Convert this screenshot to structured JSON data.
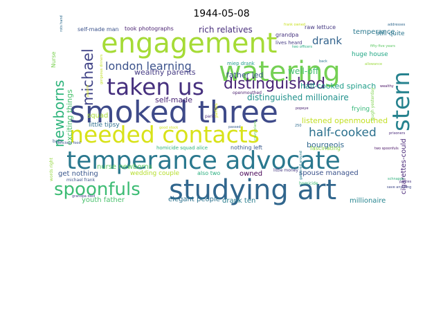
{
  "chart_data": {
    "type": "wordcloud",
    "title": "1944-05-08",
    "words": [
      {
        "text": "smoked three",
        "color": "#3e4a89"
      },
      {
        "text": "temperance advocate",
        "color": "#2a788e"
      },
      {
        "text": "studying art",
        "color": "#31668d"
      },
      {
        "text": "engagement",
        "color": "#a5db36"
      },
      {
        "text": "watering",
        "color": "#75d054"
      },
      {
        "text": "needed contacts",
        "color": "#d8e219"
      },
      {
        "text": "taken us",
        "color": "#46307e"
      },
      {
        "text": "stern",
        "color": "#26828e"
      },
      {
        "text": "spoonfuls",
        "color": "#3dbc74"
      },
      {
        "text": "distinguished",
        "color": "#482576"
      },
      {
        "text": "michael",
        "color": "#414487"
      },
      {
        "text": "newborns",
        "color": "#2fb47c"
      },
      {
        "text": "half-cooked",
        "color": "#2c718e"
      },
      {
        "text": "london learning",
        "color": "#3b528b"
      },
      {
        "text": "drank",
        "color": "#33638d"
      },
      {
        "text": "exciting things",
        "color": "#4ac16d"
      },
      {
        "text": "distinguished millionaire",
        "color": "#21918c"
      },
      {
        "text": "rich relatives",
        "color": "#472d7b"
      },
      {
        "text": "well-off",
        "color": "#44bf70"
      },
      {
        "text": "half-cooked spinach",
        "color": "#1f9e89"
      },
      {
        "text": "father led",
        "color": "#3a548c"
      },
      {
        "text": "listened openmouthed",
        "color": "#c2df23"
      },
      {
        "text": "bourgeois",
        "color": "#31688e"
      },
      {
        "text": "wealthy parents",
        "color": "#443a83"
      },
      {
        "text": "self-made",
        "color": "#482475"
      },
      {
        "text": "temperance",
        "color": "#2a788e"
      },
      {
        "text": "huge house",
        "color": "#22a785"
      },
      {
        "text": "raw lettuce",
        "color": "#453882"
      },
      {
        "text": "took photographs",
        "color": "#481f70"
      },
      {
        "text": "self-made man",
        "color": "#3b528b"
      },
      {
        "text": "nurse newborns",
        "color": "#5ec962"
      },
      {
        "text": "youth father",
        "color": "#4ac16d"
      },
      {
        "text": "elegant people",
        "color": "#2c728e"
      },
      {
        "text": "drank ten",
        "color": "#287d8e"
      },
      {
        "text": "millionaire",
        "color": "#25848e"
      },
      {
        "text": "get nothing",
        "color": "#39568c"
      },
      {
        "text": "squad",
        "color": "#a8db34"
      },
      {
        "text": "owned",
        "color": "#440154"
      },
      {
        "text": "spouse managed",
        "color": "#3b528b"
      },
      {
        "text": "frying",
        "color": "#35b779"
      },
      {
        "text": "cigarettes-could",
        "color": "#482677"
      },
      {
        "text": "nothing left",
        "color": "#38598c"
      },
      {
        "text": "wedding couple",
        "color": "#b5de2b"
      },
      {
        "text": "also two",
        "color": "#29af7f"
      },
      {
        "text": "fascinating",
        "color": "#8fd744"
      },
      {
        "text": "little tipsy",
        "color": "#2e6e8e"
      },
      {
        "text": "grandpa",
        "color": "#46337f"
      },
      {
        "text": "lives heard",
        "color": "#443a83"
      },
      {
        "text": "still quite",
        "color": "#2b758e"
      },
      {
        "text": "miep drank",
        "color": "#1e9b8a"
      },
      {
        "text": "openmouthed",
        "color": "#481b6d"
      },
      {
        "text": "homicide squad alice",
        "color": "#2db27d"
      },
      {
        "text": "Nurse",
        "color": "#7ad151"
      },
      {
        "text": "balls",
        "color": "#38598c"
      },
      {
        "text": "words right",
        "color": "#95d840"
      },
      {
        "text": "little money",
        "color": "#453781"
      },
      {
        "text": "homicide",
        "color": "#3dbc74"
      },
      {
        "text": "paris",
        "color": "#472c7a"
      },
      {
        "text": "parties",
        "color": "#d2e21b"
      },
      {
        "text": "laugh yesterday",
        "color": "#7fd34e"
      },
      {
        "text": "michael frank",
        "color": "#3b528b"
      },
      {
        "text": "rots hand",
        "color": "#2f6c8e"
      },
      {
        "text": "250",
        "color": "#2f6c8e"
      },
      {
        "text": "good stock",
        "color": "#cde11d"
      },
      {
        "text": "grandpa died",
        "color": "#433e85"
      },
      {
        "text": "allowance",
        "color": "#9bd93c"
      },
      {
        "text": "papers",
        "color": "#d0e11c"
      },
      {
        "text": "gorgeous dinners",
        "color": "#c0df25"
      },
      {
        "text": "prisoners",
        "color": "#482979"
      },
      {
        "text": "two spoonfuls",
        "color": "#471164"
      },
      {
        "text": "schnapps",
        "color": "#30b07c"
      },
      {
        "text": "parties",
        "color": "#46327e"
      },
      {
        "text": "save anything",
        "color": "#3f4889"
      },
      {
        "text": "fifty-five years",
        "color": "#5cc863"
      },
      {
        "text": "two officers",
        "color": "#25ac82"
      },
      {
        "text": "delicious food",
        "color": "#3b528b"
      },
      {
        "text": "frank owned",
        "color": "#c8e020"
      },
      {
        "text": "crazy plans",
        "color": "#6ccd5a"
      },
      {
        "text": "popeye",
        "color": "#482071"
      },
      {
        "text": "wealthy",
        "color": "#471063"
      },
      {
        "text": "addresses",
        "color": "#31688e"
      },
      {
        "text": "back",
        "color": "#2a768e"
      },
      {
        "text": "gathered around",
        "color": "#287c8e"
      },
      {
        "text": "passed",
        "color": "#355e8d"
      }
    ]
  }
}
